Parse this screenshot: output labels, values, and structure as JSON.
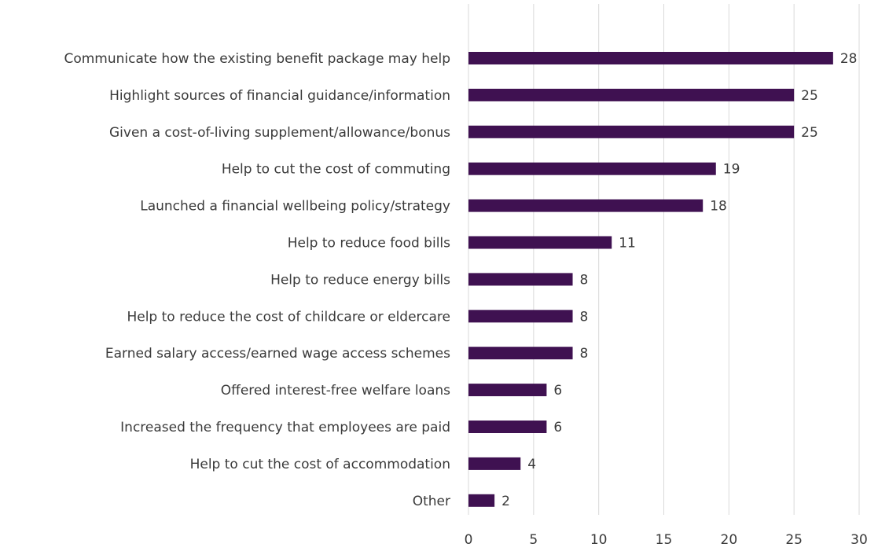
{
  "chart_data": {
    "type": "bar",
    "orientation": "horizontal",
    "title": "",
    "xlabel": "",
    "ylabel": "",
    "xlim": [
      0,
      30
    ],
    "x_ticks": [
      0,
      5,
      10,
      15,
      20,
      25,
      30
    ],
    "grid": "vertical",
    "legend": "none",
    "bar_color": "#3f1151",
    "categories": [
      "Communicate how the existing benefit package may help",
      "Highlight sources of financial guidance/information",
      "Given a cost-of-living supplement/allowance/bonus",
      "Help to cut the cost of commuting",
      "Launched a financial wellbeing policy/strategy",
      "Help to reduce food bills",
      "Help to reduce energy bills",
      "Help to reduce the cost of childcare or eldercare",
      "Earned salary access/earned wage access schemes",
      "Offered interest-free welfare loans",
      "Increased the frequency that employees are paid",
      "Help to cut the cost of accommodation",
      "Other"
    ],
    "values": [
      28,
      25,
      25,
      19,
      18,
      11,
      8,
      8,
      8,
      6,
      6,
      4,
      2
    ]
  }
}
